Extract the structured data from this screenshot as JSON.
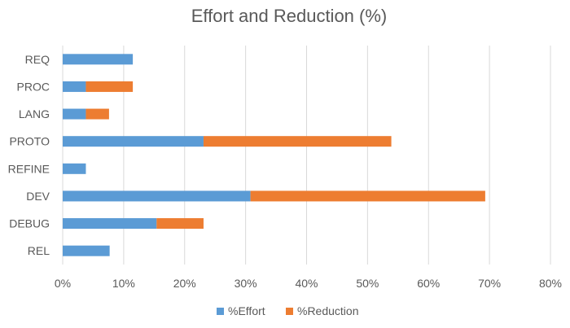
{
  "chart_data": {
    "type": "bar",
    "orientation": "horizontal",
    "stacked": true,
    "title": "Effort and Reduction (%)",
    "xlabel": "",
    "ylabel": "",
    "categories": [
      "REQ",
      "PROC",
      "LANG",
      "PROTO",
      "REFINE",
      "DEV",
      "DEBUG",
      "REL"
    ],
    "series": [
      {
        "name": "%Effort",
        "color": "#5B9BD5",
        "values": [
          11.5,
          3.8,
          3.8,
          23.1,
          3.8,
          30.8,
          15.4,
          7.7
        ]
      },
      {
        "name": "%Reduction",
        "color": "#ED7D31",
        "values": [
          0,
          7.7,
          3.8,
          30.8,
          0,
          38.5,
          7.7,
          0
        ]
      }
    ],
    "xlim": [
      0,
      80
    ],
    "xticks": [
      0,
      10,
      20,
      30,
      40,
      50,
      60,
      70,
      80
    ],
    "tick_labels": [
      "0%",
      "10%",
      "20%",
      "30%",
      "40%",
      "50%",
      "60%",
      "70%",
      "80%"
    ],
    "grid": "vertical",
    "legend_position": "bottom",
    "gridline_color": "#D9D9D9"
  }
}
